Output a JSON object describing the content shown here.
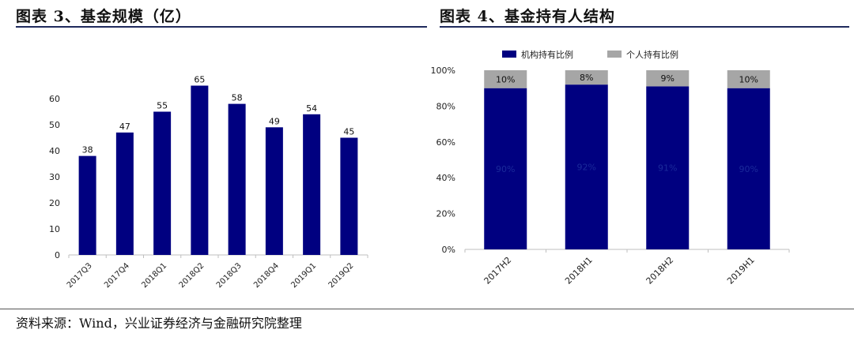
{
  "figures": {
    "left_title": "图表 3、基金规模（亿）",
    "right_title": "图表 4、基金持有人结构"
  },
  "source": "资料来源：Wind，兴业证券经济与金融研究院整理",
  "colors": {
    "navy": "#000080",
    "gray": "#a6a6a6",
    "rule": "#1f2a5c"
  },
  "chart_data": [
    {
      "type": "bar",
      "categories": [
        "2017Q3",
        "2017Q4",
        "2018Q1",
        "2018Q2",
        "2018Q3",
        "2018Q4",
        "2019Q1",
        "2019Q2"
      ],
      "values": [
        38,
        47,
        55,
        65,
        58,
        49,
        54,
        45
      ],
      "yticks": [
        0,
        10,
        20,
        30,
        40,
        50,
        60
      ],
      "ylim": [
        0,
        70
      ],
      "title": "",
      "xlabel": "",
      "ylabel": "",
      "grid": false,
      "data_labels": true
    },
    {
      "type": "bar",
      "stacked": true,
      "categories": [
        "2017H2",
        "2018H1",
        "2018H2",
        "2019H1"
      ],
      "series": [
        {
          "name": "机构持有比例",
          "values": [
            90,
            92,
            91,
            90
          ],
          "labels": [
            "90%",
            "92%",
            "91%",
            "90%"
          ]
        },
        {
          "name": "个人持有比例",
          "values": [
            10,
            8,
            9,
            10
          ],
          "labels": [
            "10%",
            "8%",
            "9%",
            "10%"
          ]
        }
      ],
      "yticks": [
        "0%",
        "20%",
        "40%",
        "60%",
        "80%",
        "100%"
      ],
      "ylim": [
        0,
        100
      ],
      "legend_position": "top",
      "grid": false
    }
  ]
}
